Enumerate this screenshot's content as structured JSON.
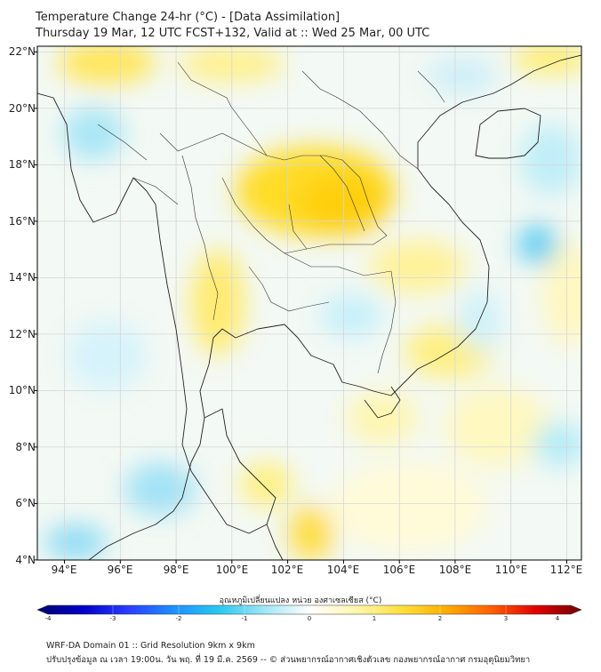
{
  "header": {
    "line1": "Temperature Change 24-hr (°C) - [Data Assimilation]",
    "line2": "Thursday 19 Mar, 12 UTC FCST+132, Valid at :: Wed 25 Mar, 00 UTC"
  },
  "map": {
    "lat_labels": [
      "22°N",
      "20°N",
      "18°N",
      "16°N",
      "14°N",
      "12°N",
      "10°N",
      "8°N",
      "6°N",
      "4°N"
    ],
    "lon_labels": [
      "94°E",
      "96°E",
      "98°E",
      "100°E",
      "102°E",
      "104°E",
      "106°E",
      "108°E",
      "110°E",
      "112°E"
    ],
    "lat_range": [
      4,
      22.2
    ],
    "lon_range": [
      93,
      112.5
    ],
    "grid": true,
    "colors": {
      "land_border": "#111111",
      "grid": "#d6d6d6",
      "frame": "#000000"
    }
  },
  "colorbar": {
    "title": "อุณหภูมิเปลี่ยนแปลง หน่วย องศาเซลเซียส (°C)",
    "ticks": [
      "-4",
      "-3",
      "-2",
      "-1",
      "0",
      "1",
      "2",
      "3",
      "4"
    ],
    "range": [
      -4,
      4
    ],
    "stops": [
      "#00006e",
      "#0000c8",
      "#2a3cff",
      "#1e90ff",
      "#28c8f0",
      "#9fe6f8",
      "#ffffff",
      "#fff7b0",
      "#ffe040",
      "#ffb000",
      "#ff6000",
      "#e00000",
      "#700000"
    ]
  },
  "footer": {
    "line1": "WRF-DA Domain 01 :: Grid Resolution 9km x 9km",
    "line2": "ปรับปรุงข้อมูล ณ เวลา 19:00น. วัน พฤ. ที่ 19 มี.ค. 2569 -- © ส่วนพยากรณ์อากาศเชิงตัวเลข กองพยากรณ์อากาศ กรมอุตุนิยมวิทยา"
  }
}
